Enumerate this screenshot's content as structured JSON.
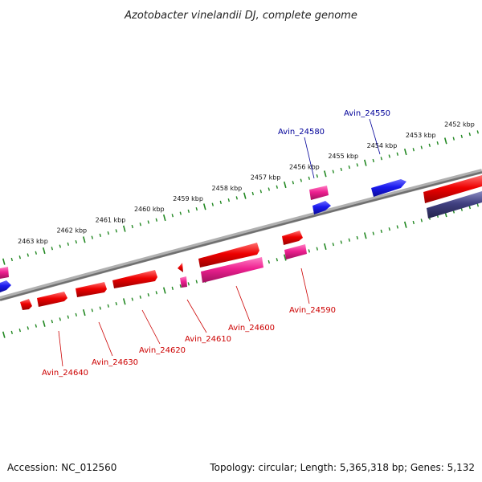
{
  "title": "Azotobacter vinelandii DJ, complete genome",
  "footer": {
    "accession": "Accession: NC_012560",
    "summary": "Topology: circular; Length: 5,365,318 bp; Genes: 5,132"
  },
  "colors": {
    "forward": "#ee0000",
    "reverse": "#1a1aee",
    "pink": "#ee2090",
    "navy": "#404080",
    "backbone": "#808080",
    "tick": "#228822",
    "label_red": "#cc0000",
    "label_blue": "#000099"
  },
  "scale_labels": [
    {
      "kbp": 2452,
      "text": "2452 kbp"
    },
    {
      "kbp": 2453,
      "text": "2453 kbp"
    },
    {
      "kbp": 2454,
      "text": "2454 kbp"
    },
    {
      "kbp": 2455,
      "text": "2455 kbp"
    },
    {
      "kbp": 2456,
      "text": "2456 kbp"
    },
    {
      "kbp": 2457,
      "text": "2457 kbp"
    },
    {
      "kbp": 2458,
      "text": "2458 kbp"
    },
    {
      "kbp": 2459,
      "text": "2459 kbp"
    },
    {
      "kbp": 2460,
      "text": "2460 kbp"
    },
    {
      "kbp": 2461,
      "text": "2461 kbp"
    },
    {
      "kbp": 2462,
      "text": "2462 kbp"
    },
    {
      "kbp": 2463,
      "text": "2463 kbp"
    }
  ],
  "gene_labels": [
    {
      "name": "Avin_24550",
      "strand": "reverse"
    },
    {
      "name": "Avin_24580",
      "strand": "reverse"
    },
    {
      "name": "Avin_24590",
      "strand": "forward"
    },
    {
      "name": "Avin_24600",
      "strand": "forward"
    },
    {
      "name": "Avin_24610",
      "strand": "forward"
    },
    {
      "name": "Avin_24620",
      "strand": "forward"
    },
    {
      "name": "Avin_24630",
      "strand": "forward"
    },
    {
      "name": "Avin_24640",
      "strand": "forward"
    }
  ]
}
